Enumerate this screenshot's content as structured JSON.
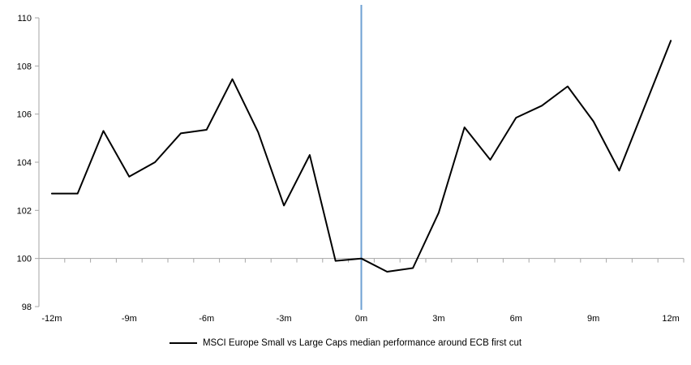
{
  "page": {
    "background": "#ffffff",
    "title": ""
  },
  "chart_data": {
    "type": "line",
    "title": "",
    "xlabel": "",
    "ylabel": "",
    "grid": "off",
    "legend_position": "bottom-center",
    "legend_label": "MSCI Europe Small vs Large Caps median performance around ECB first cut",
    "ylim": [
      98,
      110
    ],
    "y_ticks": [
      98,
      100,
      102,
      104,
      106,
      108,
      110
    ],
    "x_ticks": [
      {
        "month": -12,
        "label": "-12m"
      },
      {
        "month": -9,
        "label": "-9m"
      },
      {
        "month": -6,
        "label": "-6m"
      },
      {
        "month": -3,
        "label": "-3m"
      },
      {
        "month": 0,
        "label": "0m"
      },
      {
        "month": 3,
        "label": "3m"
      },
      {
        "month": 6,
        "label": "6m"
      },
      {
        "month": 9,
        "label": "9m"
      },
      {
        "month": 12,
        "label": "12m"
      }
    ],
    "x_minor_tick_step_months": 1,
    "baseline_value": 100,
    "event_line_month": 0,
    "series": [
      {
        "name": "MSCI Europe Small vs Large Caps median performance around ECB first cut",
        "color": "#000000",
        "x_months": [
          -12,
          -11,
          -10,
          -9,
          -8,
          -7,
          -6,
          -5,
          -4,
          -3,
          -2,
          -1,
          0,
          1,
          2,
          3,
          4,
          5,
          6,
          7,
          8,
          9,
          10,
          11,
          12
        ],
        "values": [
          102.7,
          102.7,
          105.3,
          103.4,
          104.0,
          105.2,
          105.35,
          107.45,
          105.25,
          102.2,
          104.3,
          99.9,
          100.0,
          99.45,
          99.6,
          101.9,
          105.45,
          104.1,
          105.85,
          106.35,
          107.15,
          105.7,
          103.65,
          106.35,
          109.05
        ]
      }
    ],
    "colors": {
      "line": "#000000",
      "event_line": "#6EA0D3",
      "axis": "#A6A6A6",
      "tick_text": "#000000"
    }
  }
}
